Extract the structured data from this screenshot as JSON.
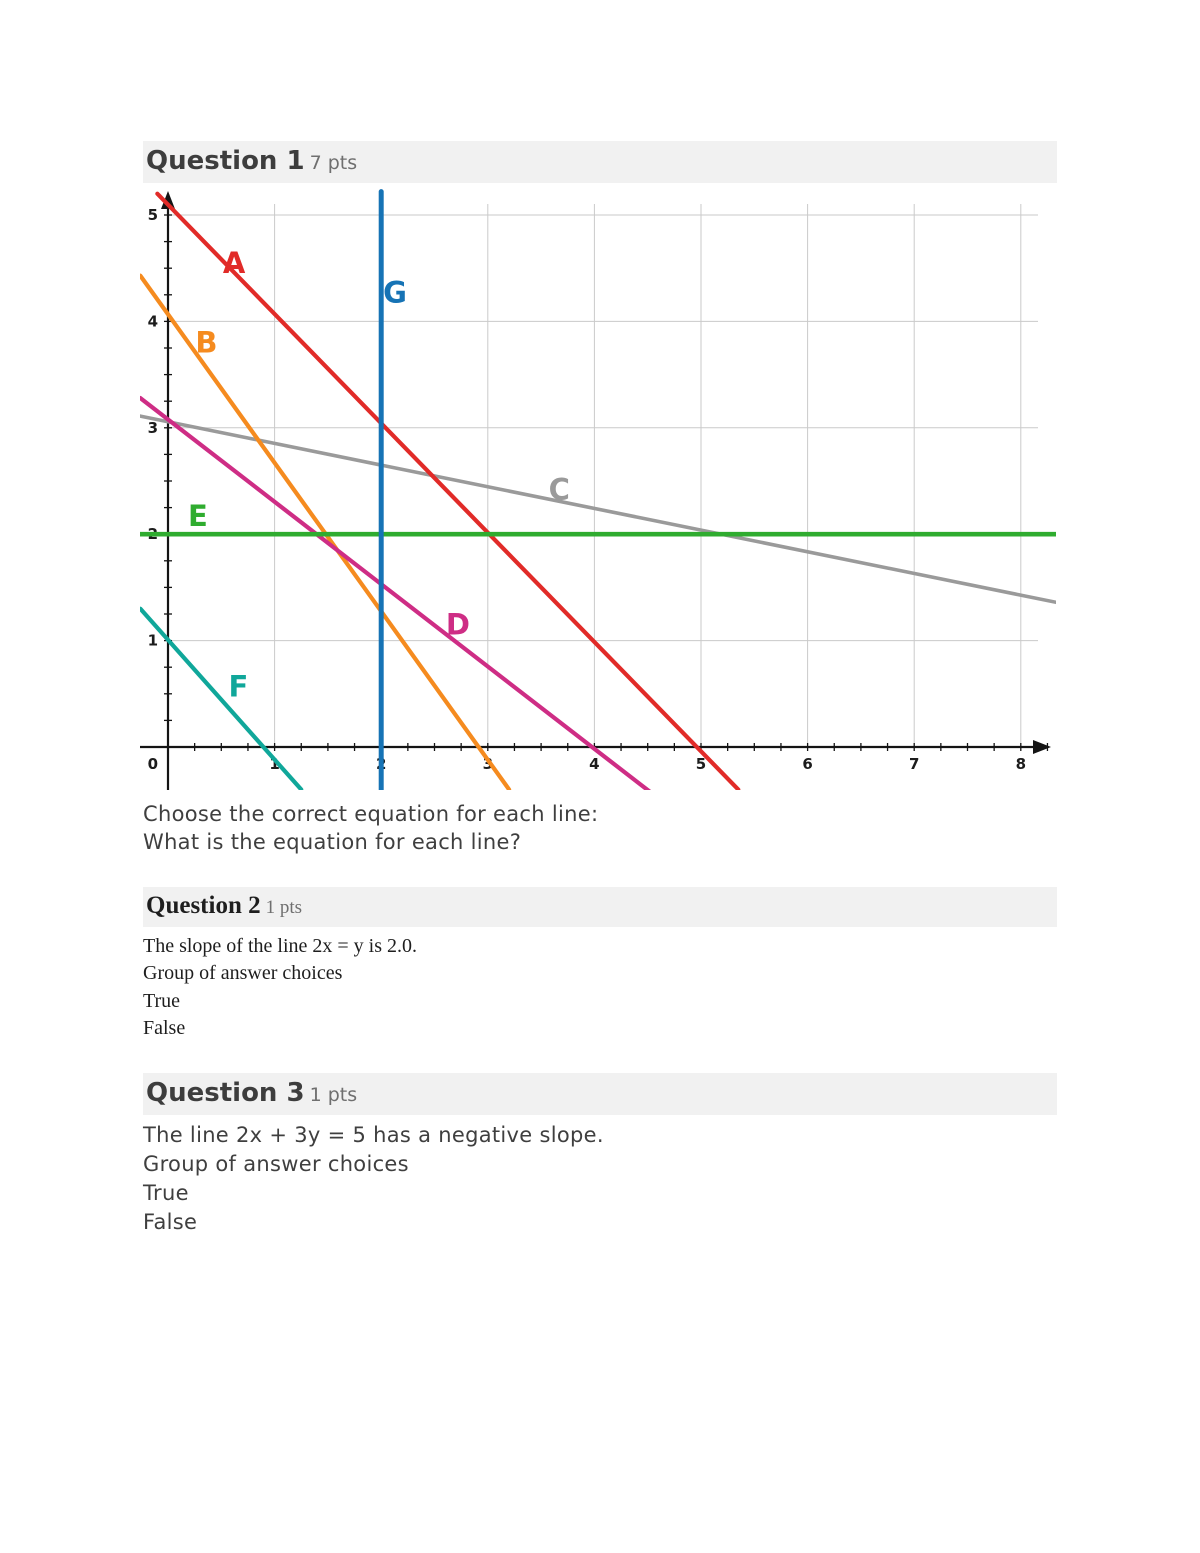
{
  "colors": {
    "header_bg": "#f1f1f1",
    "title": "#3d3d3d",
    "pts": "#6f6f6f",
    "body": "#3f3f3f"
  },
  "questions": {
    "q1": {
      "title": "Question 1",
      "pts": "7 pts",
      "body_lines": [
        "Choose the correct equation for each line:",
        "What is the equation for each line?"
      ]
    },
    "q2": {
      "title": "Question 2",
      "pts": "1 pts",
      "statement": "The slope of the line 2x = y is 2.0.",
      "group_label": "Group of answer choices",
      "choices": [
        "True",
        "False"
      ]
    },
    "q3": {
      "title": "Question 3",
      "pts": "1 pts",
      "statement": "The line 2x + 3y = 5 has a negative slope.",
      "group_label": "Group of answer choices",
      "choices": [
        "True",
        "False"
      ]
    }
  },
  "chart_data": {
    "type": "line",
    "title": "",
    "xlabel": "",
    "ylabel": "",
    "xlim": [
      -0.26,
      8.33
    ],
    "ylim": [
      -0.4,
      5.25
    ],
    "xticks": [
      1,
      2,
      3,
      4,
      5,
      6,
      7,
      8
    ],
    "yticks": [
      1,
      2,
      3,
      4,
      5
    ],
    "origin_label": "0",
    "grid": true,
    "grid_color": "#cacaca",
    "axis_color": "#141414",
    "tick_color": "#1c1c1c",
    "series": [
      {
        "name": "C",
        "color": "#9a9a9a",
        "width": 3.6,
        "points": [
          [
            -0.26,
            3.11
          ],
          [
            8.33,
            1.36
          ]
        ],
        "label_pos": [
          3.67,
          2.42
        ]
      },
      {
        "name": "A",
        "color": "#e12b28",
        "width": 4.2,
        "points": [
          [
            -0.1,
            5.2
          ],
          [
            5.35,
            -0.4
          ]
        ],
        "label_pos": [
          0.62,
          4.55
        ]
      },
      {
        "name": "B",
        "color": "#f58b1f",
        "width": 4.2,
        "points": [
          [
            -0.26,
            4.43
          ],
          [
            3.2,
            -0.4
          ]
        ],
        "label_pos": [
          0.36,
          3.8
        ]
      },
      {
        "name": "D",
        "color": "#ce2d85",
        "width": 4.2,
        "points": [
          [
            -0.26,
            3.28
          ],
          [
            4.52,
            -0.42
          ]
        ],
        "label_pos": [
          2.72,
          1.15
        ]
      },
      {
        "name": "F",
        "color": "#10a79a",
        "width": 4.2,
        "points": [
          [
            -0.26,
            1.3
          ],
          [
            1.25,
            -0.4
          ]
        ],
        "label_pos": [
          0.66,
          0.57
        ]
      },
      {
        "name": "E",
        "color": "#2fac2f",
        "width": 4.6,
        "points": [
          [
            -0.26,
            2.0
          ],
          [
            8.33,
            2.0
          ]
        ],
        "label_pos": [
          0.28,
          2.17
        ]
      },
      {
        "name": "G",
        "color": "#1673b5",
        "width": 5,
        "points": [
          [
            2.0,
            5.22
          ],
          [
            2.0,
            -0.4
          ]
        ],
        "label_pos": [
          2.13,
          4.27
        ]
      }
    ]
  }
}
